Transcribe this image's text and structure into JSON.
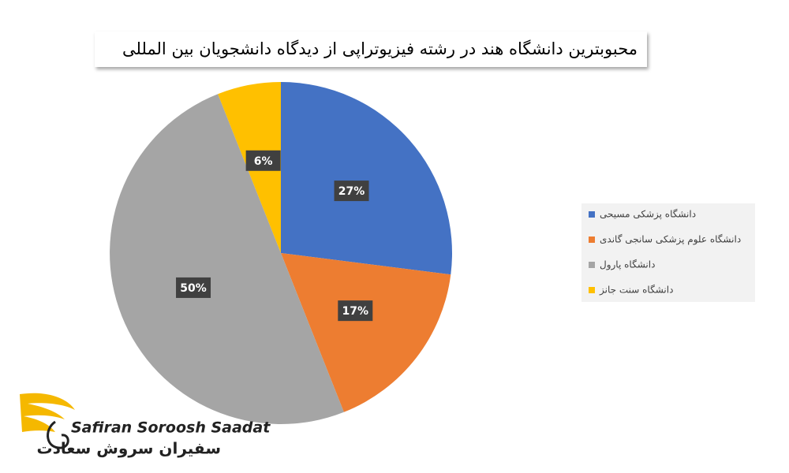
{
  "chart_data": {
    "type": "pie",
    "title": "محبوبترین دانشگاه هند در رشته فیزیوتراپی از دیدگاه دانشجویان بین المللی",
    "categories": [
      "دانشگاه پزشکی مسیحی",
      "دانشگاه علوم پزشکی سانجی گاندی",
      "دانشگاه پارول",
      "دانشگاه سنت جانز"
    ],
    "values": [
      27,
      17,
      50,
      6
    ],
    "value_labels": [
      "27%",
      "17%",
      "50%",
      "6%"
    ],
    "colors": [
      "#4472c4",
      "#ed7d31",
      "#a5a5a5",
      "#ffc000"
    ],
    "legend": "right"
  },
  "logo": {
    "latin": "Safiran Soroosh Saadat",
    "persian": "سفیران سروش سعادت"
  }
}
